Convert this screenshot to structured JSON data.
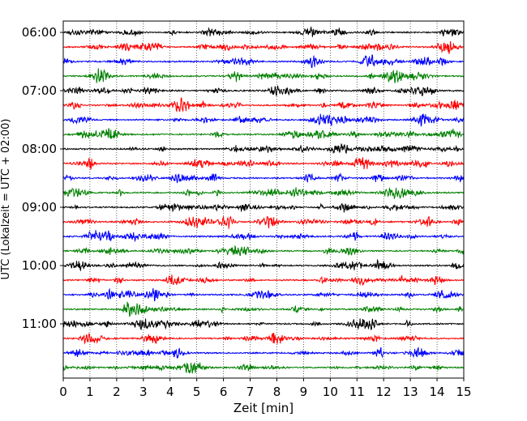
{
  "chart_data": {
    "type": "line",
    "title": "",
    "xlabel": "Zeit  [min]",
    "ylabel": "UTC (Lokalzeit = UTC + 02:00)",
    "xlim": [
      0,
      15
    ],
    "x_ticks": [
      "0",
      "1",
      "2",
      "3",
      "4",
      "5",
      "6",
      "7",
      "8",
      "9",
      "10",
      "11",
      "12",
      "13",
      "14",
      "15"
    ],
    "y_ticks": [
      "06:00",
      "07:00",
      "08:00",
      "09:00",
      "10:00",
      "11:00"
    ],
    "grid": "vertical dotted",
    "trace_interval_minutes": 15,
    "trace_duration_minutes": 15,
    "start_time": "06:00",
    "trace_count": 24,
    "trace_colors": [
      "#000000",
      "#ff0000",
      "#0000ff",
      "#008000"
    ],
    "traces": [
      {
        "start": "06:00",
        "color": "#000000"
      },
      {
        "start": "06:15",
        "color": "#ff0000"
      },
      {
        "start": "06:30",
        "color": "#0000ff"
      },
      {
        "start": "06:45",
        "color": "#008000"
      },
      {
        "start": "07:00",
        "color": "#000000"
      },
      {
        "start": "07:15",
        "color": "#ff0000"
      },
      {
        "start": "07:30",
        "color": "#0000ff"
      },
      {
        "start": "07:45",
        "color": "#008000"
      },
      {
        "start": "08:00",
        "color": "#000000"
      },
      {
        "start": "08:15",
        "color": "#ff0000"
      },
      {
        "start": "08:30",
        "color": "#0000ff"
      },
      {
        "start": "08:45",
        "color": "#008000"
      },
      {
        "start": "09:00",
        "color": "#000000"
      },
      {
        "start": "09:15",
        "color": "#ff0000"
      },
      {
        "start": "09:30",
        "color": "#0000ff"
      },
      {
        "start": "09:45",
        "color": "#008000"
      },
      {
        "start": "10:00",
        "color": "#000000"
      },
      {
        "start": "10:15",
        "color": "#ff0000"
      },
      {
        "start": "10:30",
        "color": "#0000ff"
      },
      {
        "start": "10:45",
        "color": "#008000"
      },
      {
        "start": "11:00",
        "color": "#000000"
      },
      {
        "start": "11:15",
        "color": "#ff0000"
      },
      {
        "start": "11:30",
        "color": "#0000ff"
      },
      {
        "start": "11:45",
        "color": "#008000"
      }
    ]
  }
}
